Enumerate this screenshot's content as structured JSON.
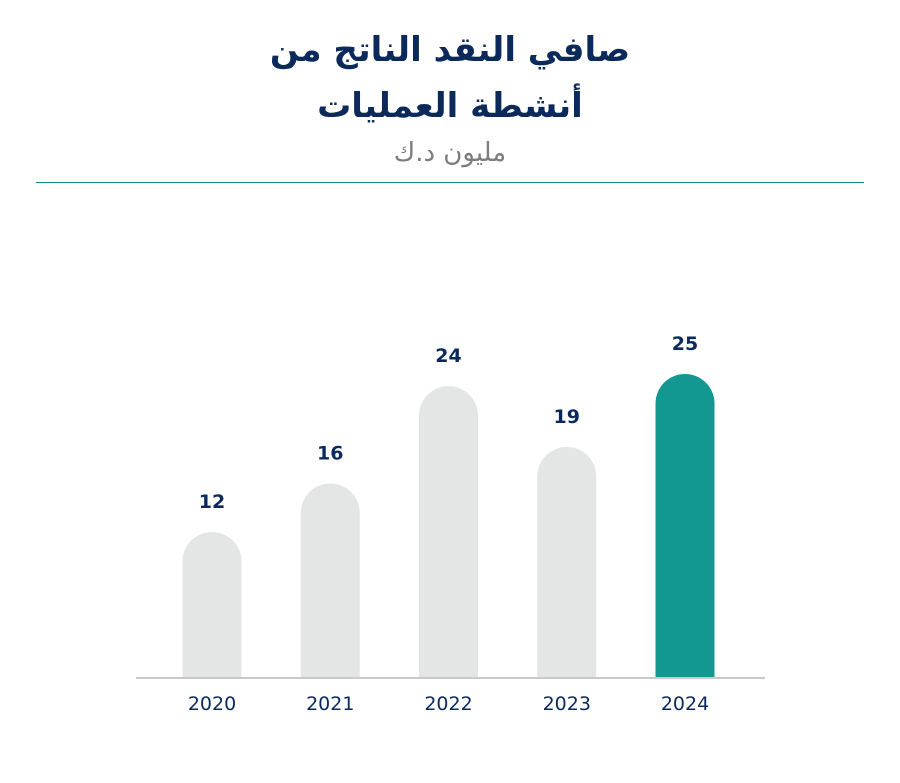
{
  "header": {
    "title_line1": "صافي النقد الناتج من",
    "title_line2": "أنشطة العمليات",
    "subtitle": "مليون د.ك"
  },
  "colors": {
    "bar_default": "#e4e5e5",
    "bar_highlight": "#139791",
    "text": "#0b2a5b",
    "axis": "#c9c9c9"
  },
  "chart_data": {
    "type": "bar",
    "title": "صافي النقد الناتج من أنشطة العمليات",
    "ylabel": "مليون د.ك",
    "xlabel": "",
    "categories": [
      "2020",
      "2021",
      "2022",
      "2023",
      "2024"
    ],
    "values": [
      12,
      16,
      24,
      19,
      25
    ],
    "highlight_index": 4,
    "ylim": [
      0,
      25
    ],
    "grid": false,
    "data_labels": true
  }
}
